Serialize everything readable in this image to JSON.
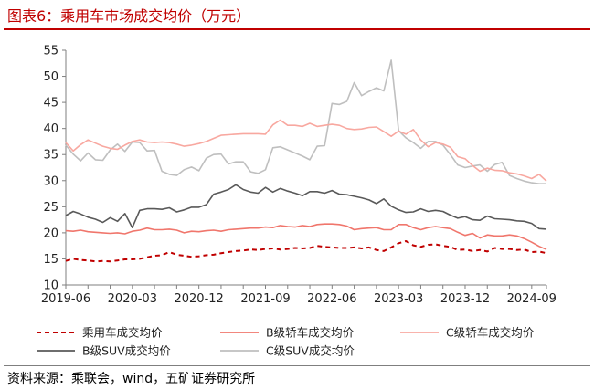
{
  "title": "图表6：乘用车市场成交均价（万元）",
  "source": "资料来源：乘联会，wind，五矿证券研究所",
  "chart_data": {
    "type": "line",
    "title": "图表6：乘用车市场成交均价（万元）",
    "xlabel": "",
    "ylabel": "万元",
    "ylim": [
      10,
      55
    ],
    "yticks": [
      10,
      15,
      20,
      25,
      30,
      35,
      40,
      45,
      50,
      55
    ],
    "xticks": [
      "2019-06",
      "2020-03",
      "2020-12",
      "2021-09",
      "2022-06",
      "2023-03",
      "2023-12",
      "2024-09"
    ],
    "x_start": "2019-06",
    "x_end": "2024-09",
    "legend": "bottom",
    "series": [
      {
        "name": "乘用车成交均价",
        "color": "#c00000",
        "style": "dashed",
        "values": [
          14.6,
          15.0,
          14.8,
          14.7,
          14.5,
          14.6,
          14.5,
          14.7,
          14.9,
          14.9,
          15.0,
          15.3,
          15.6,
          15.7,
          16.3,
          15.8,
          15.6,
          15.4,
          15.5,
          15.7,
          15.8,
          16.1,
          16.3,
          16.5,
          16.6,
          16.8,
          16.7,
          16.9,
          17.0,
          16.8,
          16.9,
          17.1,
          17.0,
          17.1,
          17.5,
          17.3,
          17.2,
          17.1,
          17.1,
          17.2,
          17.0,
          17.2,
          16.7,
          16.5,
          17.2,
          18.0,
          18.4,
          17.6,
          17.3,
          17.7,
          17.8,
          17.5,
          17.3,
          16.7,
          16.8,
          16.5,
          16.7,
          16.4,
          17.1,
          16.9,
          16.9,
          16.7,
          16.8,
          16.3,
          16.4,
          16.1
        ]
      },
      {
        "name": "B级轿车成交均价",
        "color": "#f0766c",
        "style": "solid",
        "values": [
          20.4,
          20.3,
          20.5,
          20.2,
          20.1,
          20.0,
          19.9,
          20.0,
          19.8,
          20.3,
          20.5,
          20.9,
          20.6,
          20.6,
          20.7,
          20.5,
          20.0,
          20.3,
          20.2,
          20.4,
          20.5,
          20.3,
          20.6,
          20.7,
          20.8,
          20.9,
          20.9,
          21.1,
          21.0,
          21.4,
          21.2,
          21.1,
          21.4,
          21.2,
          21.6,
          21.7,
          21.7,
          21.6,
          21.3,
          20.6,
          20.8,
          20.9,
          21.0,
          20.6,
          20.6,
          21.6,
          21.6,
          21.0,
          20.6,
          21.0,
          21.2,
          21.0,
          20.8,
          20.1,
          19.5,
          19.9,
          19.0,
          19.6,
          19.4,
          19.4,
          19.6,
          19.4,
          18.9,
          18.2,
          17.4,
          16.8
        ]
      },
      {
        "name": "C级轿车成交均价",
        "color": "#f8a8a0",
        "style": "solid",
        "values": [
          37.3,
          35.7,
          36.9,
          37.8,
          37.2,
          36.6,
          36.2,
          36.0,
          36.8,
          37.5,
          37.8,
          37.4,
          37.3,
          37.4,
          37.3,
          37.0,
          36.6,
          36.8,
          37.1,
          37.5,
          38.1,
          38.7,
          38.8,
          38.9,
          39.0,
          39.0,
          39.0,
          38.9,
          40.7,
          41.6,
          40.6,
          40.6,
          40.4,
          41.0,
          40.4,
          40.6,
          40.8,
          40.6,
          40.0,
          39.8,
          39.9,
          40.2,
          40.3,
          39.4,
          38.5,
          39.5,
          38.9,
          39.8,
          37.8,
          36.5,
          37.3,
          37.0,
          36.4,
          34.6,
          34.2,
          32.9,
          31.8,
          32.4,
          32.0,
          31.9,
          31.5,
          31.3,
          30.9,
          30.4,
          31.2,
          29.9
        ]
      },
      {
        "name": "B级SUV成交均价",
        "color": "#595959",
        "style": "solid",
        "values": [
          23.3,
          24.1,
          23.6,
          23.0,
          22.6,
          22.0,
          22.9,
          22.2,
          23.7,
          21.0,
          24.3,
          24.6,
          24.6,
          24.5,
          24.8,
          24.0,
          24.4,
          24.9,
          24.9,
          25.4,
          27.4,
          27.8,
          28.3,
          29.2,
          28.3,
          27.8,
          27.6,
          28.7,
          27.8,
          28.5,
          28.0,
          27.6,
          27.1,
          27.9,
          27.9,
          27.6,
          28.1,
          27.4,
          27.3,
          27.0,
          26.7,
          26.3,
          25.6,
          26.5,
          25.1,
          24.4,
          23.9,
          24.0,
          24.6,
          24.1,
          24.3,
          24.1,
          23.4,
          22.8,
          23.1,
          22.5,
          22.4,
          23.2,
          22.7,
          22.6,
          22.5,
          22.3,
          22.2,
          21.8,
          20.8,
          20.7
        ]
      },
      {
        "name": "C级SUV成交均价",
        "color": "#bfbfbf",
        "style": "solid",
        "values": [
          36.8,
          35.1,
          33.8,
          35.3,
          34.0,
          33.9,
          35.9,
          37.0,
          35.6,
          37.4,
          37.3,
          35.7,
          35.8,
          31.8,
          31.2,
          31.0,
          32.1,
          32.6,
          31.9,
          34.3,
          35.0,
          35.1,
          33.2,
          33.6,
          33.6,
          31.7,
          31.4,
          32.1,
          36.3,
          36.5,
          35.9,
          35.3,
          34.7,
          34.0,
          36.6,
          36.7,
          44.8,
          44.6,
          45.2,
          48.8,
          46.3,
          47.1,
          47.8,
          47.2,
          53.1,
          39.6,
          38.2,
          37.3,
          36.2,
          37.5,
          37.5,
          36.8,
          35.0,
          33.0,
          32.5,
          32.8,
          33.0,
          31.8,
          33.1,
          33.5,
          31.0,
          30.4,
          29.9,
          29.6,
          29.4,
          29.4
        ]
      }
    ]
  }
}
